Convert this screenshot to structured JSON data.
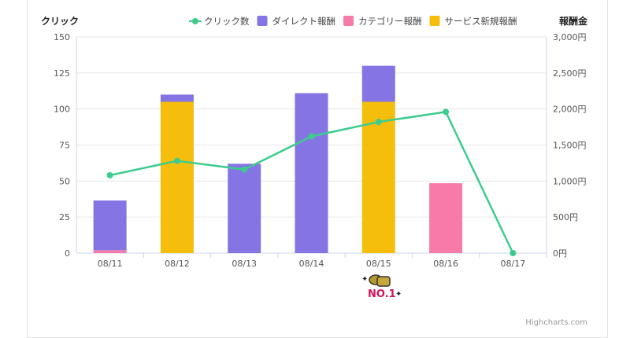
{
  "chart_data": {
    "type": "bar",
    "stacked": true,
    "categories": [
      "08/11",
      "08/12",
      "08/13",
      "08/14",
      "08/15",
      "08/16",
      "08/17"
    ],
    "left_axis": {
      "title": "クリック",
      "range": [
        0,
        150
      ],
      "ticks": [
        "0",
        "25",
        "50",
        "75",
        "100",
        "125",
        "150"
      ]
    },
    "right_axis": {
      "title": "報酬金",
      "range": [
        0,
        3000
      ],
      "ticks": [
        "0円",
        "500円",
        "1,000円",
        "1,500円",
        "2,000円",
        "2,500円",
        "3,000円"
      ]
    },
    "legend_position": "top-right",
    "series": [
      {
        "name": "クリック数",
        "type": "line",
        "axis": "left",
        "color": "#3dcc8e",
        "values": [
          54,
          64,
          58,
          81,
          91,
          98,
          0
        ]
      },
      {
        "name": "ダイレクト報酬",
        "type": "bar",
        "axis": "right",
        "color": "#8574e3",
        "values": [
          690,
          100,
          1240,
          2220,
          500,
          0,
          0
        ]
      },
      {
        "name": "カテゴリー報酬",
        "type": "bar",
        "axis": "right",
        "color": "#f77ba8",
        "values": [
          40,
          0,
          0,
          0,
          0,
          970,
          0
        ]
      },
      {
        "name": "サービス新規報酬",
        "type": "bar",
        "axis": "right",
        "color": "#f5bd0c",
        "values": [
          0,
          2100,
          0,
          0,
          2100,
          0,
          0
        ]
      }
    ],
    "grid": true
  },
  "badge_text": "NO.1",
  "credit": "Highcharts.com"
}
